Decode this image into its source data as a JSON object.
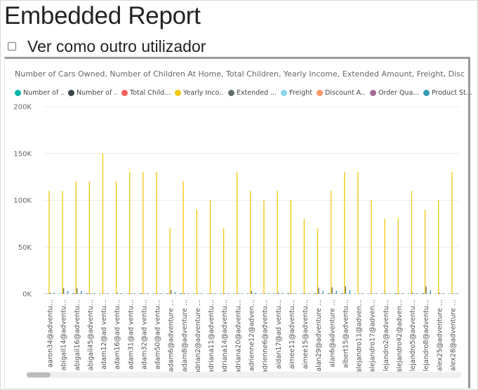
{
  "header": {
    "title": "Embedded Report",
    "view_as_label": "Ver como outro utilizador"
  },
  "chart": {
    "title": "Number of Cars Owned, Number of Children At Home, Total Children, Yearly Income, Extended Amount, Freight, Discount Am..."
  },
  "chart_data": {
    "type": "bar",
    "title": "Number of Cars Owned, Number of Children At Home, Total Children, Yearly Income, Extended Amount, Freight, Discount Am...",
    "ylim": [
      0,
      200000
    ],
    "yticks": [
      0,
      50000,
      100000,
      150000,
      200000
    ],
    "ytick_labels": [
      "0K",
      "50K",
      "100K",
      "150K",
      "200K"
    ],
    "grid": true,
    "legend_position": "top-left",
    "categories": [
      "aaron34@adventu...",
      "abigail14@adventu...",
      "abigail16@adventu...",
      "abigail45@adventu...",
      "adam12@ad ventu...",
      "adam16@ad ventu...",
      "adam31@ad ventu...",
      "adam32@ad ventu...",
      "adam50@ad ventu...",
      "adam6@adventure ...",
      "adam8@adventure ...",
      "adrian2@adventure ...",
      "adriana11@adventu...",
      "adriana14@adventu...",
      "adriana20@adventu...",
      "adrienne12@adven...",
      "adrienne6@adventu...",
      "aidan17@ad ventu...",
      "aimee11@adventu...",
      "aimee15@adventu...",
      "alan29@adventure ...",
      "alan6@adventure ...",
      "albert15@adventu...",
      "alejandro11@adven...",
      "alejandro17@adven...",
      "alejandro2@adventu...",
      "alejandro42@adven...",
      "alejandro5@adventu...",
      "alejandro8@adventu...",
      "alex25@adventure ...",
      "alex28@adventure ..."
    ],
    "series": [
      {
        "name": "Number of ...",
        "color": "#01B8AA",
        "values": [
          3,
          2,
          2,
          1,
          2,
          2,
          1,
          4,
          2,
          3,
          2,
          3,
          3,
          2,
          3,
          2,
          2,
          1,
          3,
          2,
          4,
          3,
          3,
          2,
          3,
          2,
          2,
          1,
          3,
          2,
          1
        ]
      },
      {
        "name": "Number of ...",
        "color": "#374649",
        "values": [
          0,
          0,
          1,
          2,
          0,
          0,
          0,
          3,
          0,
          2,
          1,
          0,
          0,
          0,
          0,
          0,
          0,
          0,
          1,
          0,
          3,
          1,
          2,
          0,
          0,
          0,
          1,
          0,
          3,
          0,
          0
        ]
      },
      {
        "name": "Total Child...",
        "color": "#FD625E",
        "values": [
          2,
          3,
          3,
          4,
          1,
          0,
          2,
          5,
          3,
          2,
          3,
          1,
          2,
          1,
          2,
          1,
          3,
          2,
          4,
          1,
          3,
          2,
          4,
          0,
          1,
          2,
          3,
          1,
          4,
          2,
          1
        ]
      },
      {
        "name": "Yearly Inco...",
        "color": "#F2C80F",
        "values": [
          110000,
          110000,
          120000,
          120000,
          150000,
          120000,
          130000,
          130000,
          130000,
          70000,
          120000,
          90000,
          100000,
          70000,
          130000,
          110000,
          100000,
          110000,
          100000,
          80000,
          70000,
          110000,
          130000,
          130000,
          100000,
          80000,
          80000,
          110000,
          90000,
          100000,
          130000
        ]
      },
      {
        "name": "Extended ...",
        "color": "#5F6B6D",
        "values": [
          1200,
          6000,
          6000,
          600,
          500,
          1200,
          600,
          600,
          600,
          4000,
          600,
          600,
          500,
          500,
          600,
          3000,
          600,
          1200,
          600,
          600,
          6500,
          7000,
          8000,
          600,
          600,
          600,
          600,
          1200,
          8000,
          1200,
          600
        ]
      },
      {
        "name": "Freight",
        "color": "#8AD4EB",
        "values": [
          30,
          150,
          150,
          15,
          12,
          30,
          15,
          15,
          15,
          100,
          15,
          15,
          12,
          12,
          15,
          75,
          15,
          30,
          15,
          15,
          160,
          175,
          200,
          15,
          15,
          15,
          15,
          30,
          200,
          30,
          15
        ]
      },
      {
        "name": "Discount A...",
        "color": "#FE9666",
        "values": [
          0,
          0,
          0,
          0,
          0,
          0,
          0,
          0,
          0,
          0,
          0,
          0,
          0,
          0,
          0,
          0,
          0,
          0,
          0,
          0,
          0,
          0,
          0,
          0,
          0,
          0,
          0,
          0,
          0,
          0,
          0
        ]
      },
      {
        "name": "Order Qua...",
        "color": "#A66999",
        "values": [
          1,
          2,
          2,
          1,
          1,
          1,
          1,
          1,
          1,
          2,
          1,
          1,
          1,
          1,
          1,
          2,
          1,
          1,
          1,
          1,
          3,
          3,
          3,
          1,
          1,
          1,
          1,
          1,
          3,
          1,
          1
        ]
      },
      {
        "name": "Product St...",
        "color": "#3599B8",
        "values": [
          800,
          3000,
          3000,
          400,
          300,
          800,
          400,
          400,
          400,
          2000,
          400,
          400,
          300,
          300,
          400,
          1500,
          400,
          800,
          400,
          400,
          3300,
          3500,
          4000,
          400,
          400,
          400,
          400,
          800,
          4000,
          800,
          400
        ]
      }
    ]
  }
}
